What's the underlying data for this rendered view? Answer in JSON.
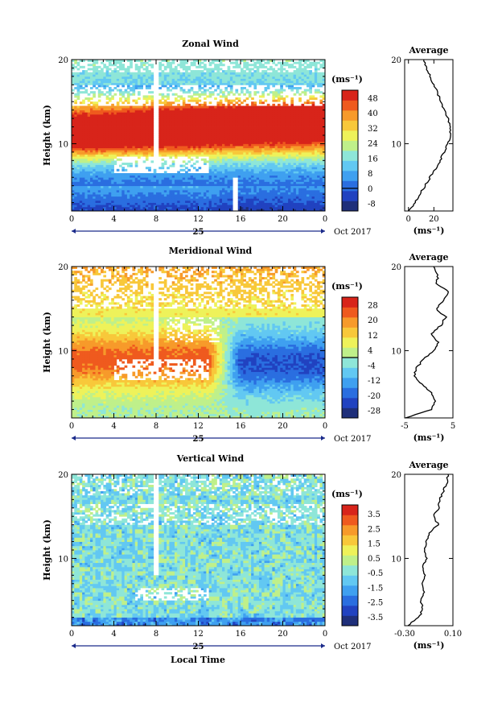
{
  "colors": {
    "scale": [
      "#1f2f7a",
      "#2142c0",
      "#2a6ee0",
      "#3fa0f0",
      "#62c8f2",
      "#8ee6d8",
      "#bff08a",
      "#eef25a",
      "#f8c83a",
      "#f79a2a",
      "#ef5a1e",
      "#d8241a"
    ],
    "line": "#000000",
    "axis_arrow": "#1a2a8a"
  },
  "shared": {
    "xticks": [
      "0",
      "4",
      "8",
      "12",
      "16",
      "20",
      "0"
    ],
    "xtick_values": [
      0,
      4,
      8,
      12,
      16,
      20,
      24
    ],
    "day_label": "25",
    "month_label": "Oct 2017",
    "yticks": [
      "20",
      "10"
    ],
    "ytick_values": [
      20,
      10
    ],
    "xlabel": "Local Time",
    "ylabel": "Height (km)",
    "unit_label": "(ms⁻¹)",
    "average_title": "Average"
  },
  "chart_data": [
    {
      "type": "heatmap",
      "title": "Zonal Wind",
      "xlim": [
        0,
        24
      ],
      "ylim": [
        2,
        20
      ],
      "colorbar": {
        "ticks": [
          "48",
          "40",
          "32",
          "24",
          "16",
          "8",
          "0",
          "-8"
        ],
        "values": [
          48,
          40,
          32,
          24,
          16,
          8,
          0,
          -8
        ],
        "min": -12,
        "max": 52
      },
      "average": {
        "xticks": [
          "0",
          "20"
        ],
        "xtick_values": [
          0,
          20
        ],
        "xlim": [
          -3,
          35
        ],
        "profile": [
          [
            2,
            0
          ],
          [
            3,
            5
          ],
          [
            4,
            9
          ],
          [
            5,
            13
          ],
          [
            6,
            17
          ],
          [
            7,
            21
          ],
          [
            8,
            25
          ],
          [
            9,
            28
          ],
          [
            10,
            31
          ],
          [
            11,
            33
          ],
          [
            12,
            33
          ],
          [
            13,
            31
          ],
          [
            14,
            28
          ],
          [
            15,
            26
          ],
          [
            16,
            23
          ],
          [
            17,
            20
          ],
          [
            18,
            17
          ],
          [
            19,
            14
          ],
          [
            20,
            12
          ]
        ]
      }
    },
    {
      "type": "heatmap",
      "title": "Meridional Wind",
      "xlim": [
        0,
        24
      ],
      "ylim": [
        2,
        20
      ],
      "colorbar": {
        "ticks": [
          "28",
          "20",
          "12",
          "4",
          "-4",
          "-12",
          "-20",
          "-28"
        ],
        "values": [
          28,
          20,
          12,
          4,
          -4,
          -12,
          -20,
          -28
        ],
        "min": -32,
        "max": 32
      },
      "average": {
        "xticks": [
          "-5",
          "5"
        ],
        "xtick_values": [
          -5,
          5
        ],
        "xlim": [
          -5,
          5
        ],
        "profile": [
          [
            2,
            -4.8
          ],
          [
            3,
            0.5
          ],
          [
            4,
            1.2
          ],
          [
            5,
            0.6
          ],
          [
            6,
            -1.5
          ],
          [
            7,
            -3
          ],
          [
            8,
            -2.5
          ],
          [
            9,
            -1
          ],
          [
            10,
            1
          ],
          [
            11,
            2
          ],
          [
            12,
            0.5
          ],
          [
            13,
            2.5
          ],
          [
            14,
            3.5
          ],
          [
            15,
            1.5
          ],
          [
            16,
            3
          ],
          [
            17,
            4
          ],
          [
            18,
            1.5
          ],
          [
            19,
            2
          ],
          [
            20,
            1
          ]
        ]
      }
    },
    {
      "type": "heatmap",
      "title": "Vertical Wind",
      "xlim": [
        0,
        24
      ],
      "ylim": [
        2,
        20
      ],
      "colorbar": {
        "ticks": [
          "3.5",
          "2.5",
          "1.5",
          "0.5",
          "-0.5",
          "-1.5",
          "-2.5",
          "-3.5"
        ],
        "values": [
          3.5,
          2.5,
          1.5,
          0.5,
          -0.5,
          -1.5,
          -2.5,
          -3.5
        ],
        "min": -4.1,
        "max": 4.1
      },
      "average": {
        "xticks": [
          "-0.30",
          "0.10"
        ],
        "xtick_values": [
          -0.3,
          0.1
        ],
        "xlim": [
          -0.3,
          0.1
        ],
        "profile": [
          [
            2,
            -0.28
          ],
          [
            3,
            -0.18
          ],
          [
            4,
            -0.15
          ],
          [
            5,
            -0.17
          ],
          [
            6,
            -0.14
          ],
          [
            7,
            -0.16
          ],
          [
            8,
            -0.13
          ],
          [
            9,
            -0.15
          ],
          [
            10,
            -0.12
          ],
          [
            11,
            -0.14
          ],
          [
            12,
            -0.12
          ],
          [
            13,
            -0.1
          ],
          [
            14,
            -0.02
          ],
          [
            15,
            -0.06
          ],
          [
            16,
            -0.02
          ],
          [
            17,
            -0.01
          ],
          [
            18,
            0.02
          ],
          [
            19,
            0.05
          ],
          [
            20,
            0.06
          ]
        ]
      }
    }
  ]
}
